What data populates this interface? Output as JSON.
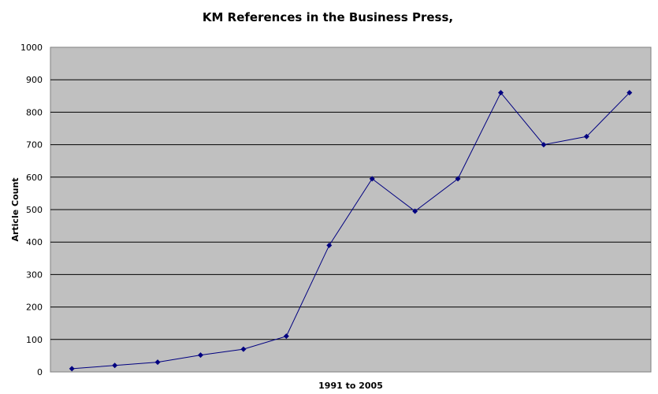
{
  "chart_data": {
    "type": "line",
    "title": "KM References in the Business Press,",
    "xlabel": "1991 to 2005",
    "ylabel": "Article Count",
    "ylim": [
      0,
      1000
    ],
    "yticks": [
      0,
      100,
      200,
      300,
      400,
      500,
      600,
      700,
      800,
      900,
      1000
    ],
    "grid": true,
    "legend": "none",
    "plot_background": "#c0c0c0",
    "gridline_color": "#000000",
    "series": [
      {
        "color": "#000080",
        "marker": "diamond",
        "values": [
          10,
          20,
          30,
          52,
          70,
          110,
          390,
          595,
          495,
          595,
          860,
          700,
          725,
          860
        ]
      }
    ]
  }
}
